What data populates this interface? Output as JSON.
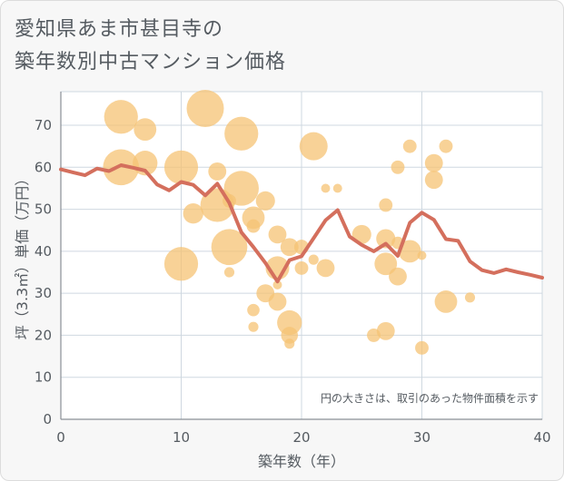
{
  "chart_data": {
    "type": "scatter",
    "title": [
      "愛知県あま市甚目寺の",
      "築年数別中古マンション価格"
    ],
    "xlabel": "築年数（年）",
    "ylabel": "坪（3.3㎡）単価（万円）",
    "xlim": [
      0,
      40
    ],
    "ylim": [
      0,
      78
    ],
    "xticks": [
      0,
      10,
      20,
      30,
      40
    ],
    "yticks": [
      0,
      10,
      20,
      30,
      40,
      50,
      60,
      70
    ],
    "note": "円の大きさは、取引のあった物件面積を示す",
    "colors": {
      "bubble": "#f5c374",
      "line": "#d46f5d",
      "grid": "#cfd8e0",
      "axis_text": "#555b61"
    },
    "bubbles": [
      {
        "x": 5,
        "y": 72,
        "s": 3
      },
      {
        "x": 5,
        "y": 60,
        "s": 3.2
      },
      {
        "x": 7,
        "y": 69,
        "s": 2
      },
      {
        "x": 7,
        "y": 61,
        "s": 2.2
      },
      {
        "x": 10,
        "y": 60,
        "s": 3
      },
      {
        "x": 10,
        "y": 37,
        "s": 3
      },
      {
        "x": 11,
        "y": 49,
        "s": 1.8
      },
      {
        "x": 12,
        "y": 74,
        "s": 3.5
      },
      {
        "x": 13,
        "y": 59,
        "s": 1.6
      },
      {
        "x": 13,
        "y": 51,
        "s": 3
      },
      {
        "x": 14,
        "y": 52,
        "s": 1.2
      },
      {
        "x": 14,
        "y": 41,
        "s": 3.2
      },
      {
        "x": 14,
        "y": 35,
        "s": 0.9
      },
      {
        "x": 15,
        "y": 68,
        "s": 3
      },
      {
        "x": 15,
        "y": 55,
        "s": 3.1
      },
      {
        "x": 16,
        "y": 48,
        "s": 2
      },
      {
        "x": 16,
        "y": 46,
        "s": 1.2
      },
      {
        "x": 16,
        "y": 26,
        "s": 1.1
      },
      {
        "x": 16,
        "y": 22,
        "s": 0.9
      },
      {
        "x": 17,
        "y": 52,
        "s": 1.7
      },
      {
        "x": 17,
        "y": 30,
        "s": 1.6
      },
      {
        "x": 18,
        "y": 44,
        "s": 1.6
      },
      {
        "x": 18,
        "y": 36,
        "s": 2.1
      },
      {
        "x": 18,
        "y": 32,
        "s": 0.8
      },
      {
        "x": 18,
        "y": 28,
        "s": 1.6
      },
      {
        "x": 19,
        "y": 41,
        "s": 1.6
      },
      {
        "x": 19,
        "y": 23,
        "s": 2.2
      },
      {
        "x": 19,
        "y": 20,
        "s": 1.5
      },
      {
        "x": 19,
        "y": 18,
        "s": 0.9
      },
      {
        "x": 20,
        "y": 41,
        "s": 1.3
      },
      {
        "x": 20,
        "y": 36,
        "s": 1.2
      },
      {
        "x": 21,
        "y": 65,
        "s": 2.5
      },
      {
        "x": 21,
        "y": 38,
        "s": 0.9
      },
      {
        "x": 22,
        "y": 55,
        "s": 0.8
      },
      {
        "x": 22,
        "y": 36,
        "s": 1.6
      },
      {
        "x": 23,
        "y": 55,
        "s": 0.8
      },
      {
        "x": 25,
        "y": 44,
        "s": 1.7
      },
      {
        "x": 26,
        "y": 20,
        "s": 1.2
      },
      {
        "x": 27,
        "y": 51,
        "s": 1.2
      },
      {
        "x": 27,
        "y": 43,
        "s": 1.7
      },
      {
        "x": 27,
        "y": 37,
        "s": 2
      },
      {
        "x": 27,
        "y": 21,
        "s": 1.6
      },
      {
        "x": 28,
        "y": 60,
        "s": 1.2
      },
      {
        "x": 28,
        "y": 42,
        "s": 1.1
      },
      {
        "x": 28,
        "y": 34,
        "s": 1.6
      },
      {
        "x": 29,
        "y": 65,
        "s": 1.2
      },
      {
        "x": 29,
        "y": 40,
        "s": 2
      },
      {
        "x": 30,
        "y": 39,
        "s": 0.8
      },
      {
        "x": 30,
        "y": 17,
        "s": 1.2
      },
      {
        "x": 31,
        "y": 61,
        "s": 1.6
      },
      {
        "x": 31,
        "y": 57,
        "s": 1.6
      },
      {
        "x": 32,
        "y": 65,
        "s": 1.2
      },
      {
        "x": 32,
        "y": 28,
        "s": 2
      },
      {
        "x": 34,
        "y": 29,
        "s": 0.9
      }
    ],
    "line": {
      "x": [
        0,
        1,
        2,
        3,
        4,
        5,
        6,
        7,
        8,
        9,
        10,
        11,
        12,
        13,
        14,
        15,
        16,
        17,
        18,
        19,
        20,
        21,
        22,
        23,
        24,
        25,
        26,
        27,
        28,
        29,
        30,
        31,
        32,
        33,
        34,
        35,
        36,
        37,
        38,
        39,
        40
      ],
      "y": [
        59.5,
        58.8,
        58.1,
        59.7,
        59.1,
        60.5,
        59.9,
        59.2,
        55.9,
        54.5,
        56.5,
        55.8,
        53.3,
        56.1,
        51.5,
        44.5,
        41,
        37.2,
        32.8,
        37.9,
        38.8,
        43.1,
        47.4,
        49.8,
        43.5,
        41.5,
        40,
        41.8,
        38.9,
        46.8,
        49.2,
        47.5,
        42.9,
        42.5,
        37.6,
        35.5,
        34.8,
        35.7,
        35,
        34.4,
        33.7
      ]
    }
  }
}
